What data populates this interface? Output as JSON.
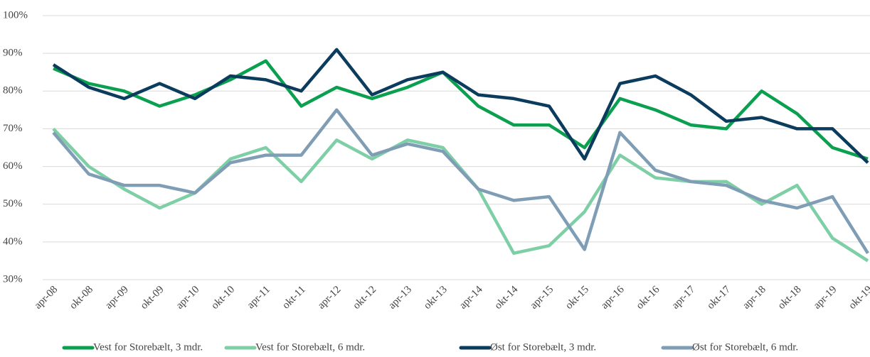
{
  "chart_data": {
    "type": "line",
    "categories": [
      "apr-08",
      "okt-08",
      "apr-09",
      "okt-09",
      "apr-10",
      "okt-10",
      "apr-11",
      "okt-11",
      "apr-12",
      "okt-12",
      "apr-13",
      "okt-13",
      "apr-14",
      "okt-14",
      "apr-15",
      "okt-15",
      "apr-16",
      "okt-16",
      "apr-17",
      "okt-17",
      "apr-18",
      "okt-18",
      "apr-19",
      "okt-19"
    ],
    "series": [
      {
        "name": "Vest for Storebælt, 3 mdr.",
        "color": "#0aa04f",
        "values": [
          86,
          82,
          80,
          76,
          79,
          83,
          88,
          76,
          81,
          78,
          81,
          85,
          76,
          71,
          71,
          65,
          78,
          75,
          71,
          70,
          80,
          74,
          65,
          62
        ]
      },
      {
        "name": "Vest for Storebælt, 6 mdr.",
        "color": "#7fcfa6",
        "values": [
          70,
          60,
          54,
          49,
          53,
          62,
          65,
          56,
          67,
          62,
          67,
          65,
          54,
          37,
          39,
          48,
          63,
          57,
          56,
          56,
          50,
          55,
          41,
          35
        ]
      },
      {
        "name": "Øst for Storebælt, 3 mdr.",
        "color": "#0b3c5d",
        "values": [
          87,
          81,
          78,
          82,
          78,
          84,
          83,
          80,
          91,
          79,
          83,
          85,
          79,
          78,
          76,
          62,
          82,
          84,
          79,
          72,
          73,
          70,
          70,
          61
        ]
      },
      {
        "name": "Øst for Storebælt, 6 mdr.",
        "color": "#7f9db5",
        "values": [
          69,
          58,
          55,
          55,
          53,
          61,
          63,
          63,
          75,
          63,
          66,
          64,
          54,
          51,
          52,
          38,
          69,
          59,
          56,
          55,
          51,
          49,
          52,
          37
        ]
      }
    ],
    "ylim": [
      30,
      100
    ],
    "yticks": [
      {
        "value": 30,
        "label": "30%"
      },
      {
        "value": 40,
        "label": "40%"
      },
      {
        "value": 50,
        "label": "50%"
      },
      {
        "value": 60,
        "label": "60%"
      },
      {
        "value": 70,
        "label": "70%"
      },
      {
        "value": 80,
        "label": "80%"
      },
      {
        "value": 90,
        "label": "90%"
      },
      {
        "value": 100,
        "label": "100%"
      }
    ],
    "grid": true,
    "legend": "bottom"
  }
}
